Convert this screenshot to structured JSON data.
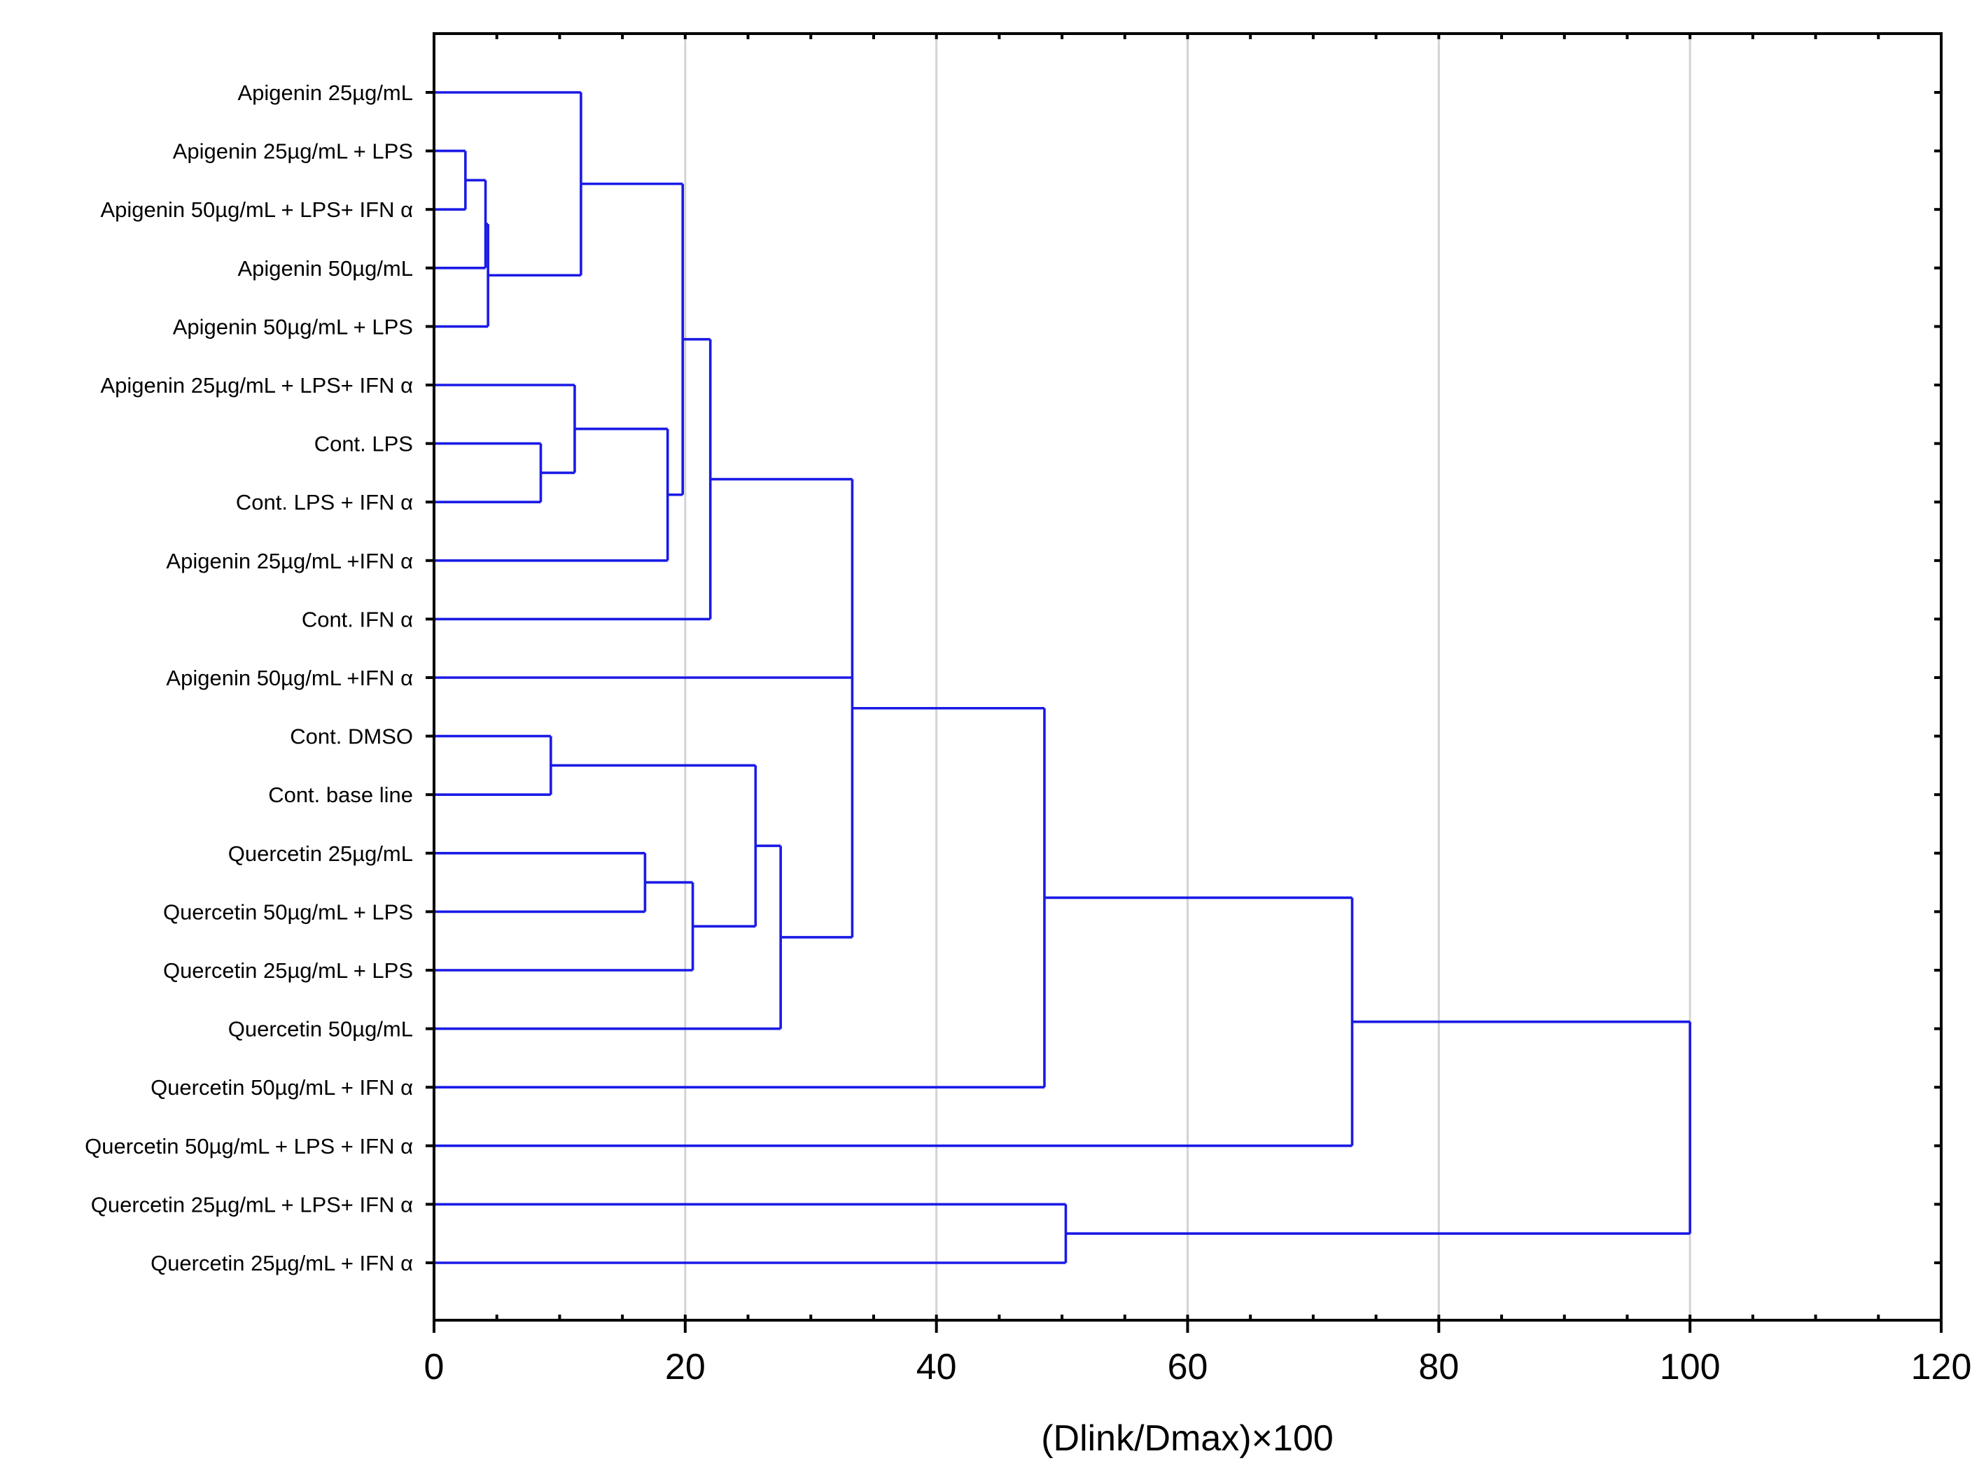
{
  "chart_data": {
    "type": "dendrogram",
    "orientation": "horizontal",
    "xlabel": "(Dlink/Dmax)×100",
    "xlim": [
      0,
      120
    ],
    "xticks": [
      0,
      20,
      40,
      60,
      80,
      100,
      120
    ],
    "grid": "vertical",
    "line_color": "#1a1ae6",
    "leaves": [
      "Apigenin 25µg/mL",
      "Apigenin 25µg/mL + LPS",
      "Apigenin 50µg/mL + LPS+ IFN α",
      "Apigenin 50µg/mL",
      "Apigenin 50µg/mL + LPS",
      "Apigenin 25µg/mL + LPS+ IFN α",
      "Cont. LPS",
      "Cont. LPS + IFN α",
      "Apigenin 25µg/mL +IFN α",
      "Cont. IFN α",
      "Apigenin 50µg/mL +IFN α",
      "Cont. DMSO",
      "Cont. base line",
      "Quercetin 25µg/mL",
      "Quercetin 50µg/mL + LPS",
      "Quercetin 25µg/mL + LPS",
      "Quercetin 50µg/mL",
      "Quercetin 50µg/mL + IFN α",
      "Quercetin 50µg/mL + LPS + IFN α",
      "Quercetin 25µg/mL + LPS+ IFN α",
      "Quercetin 25µg/mL + IFN α"
    ],
    "merges": [
      {
        "id": "m1",
        "children": [
          "L1",
          "L2"
        ],
        "height": 2.5
      },
      {
        "id": "m2",
        "children": [
          "m1",
          "L3"
        ],
        "height": 4.1
      },
      {
        "id": "m3",
        "children": [
          "m2",
          "L4"
        ],
        "height": 4.3
      },
      {
        "id": "m4",
        "children": [
          "L0",
          "m3"
        ],
        "height": 11.7
      },
      {
        "id": "m5",
        "children": [
          "L6",
          "L7"
        ],
        "height": 8.5
      },
      {
        "id": "m6",
        "children": [
          "L5",
          "m5"
        ],
        "height": 11.2
      },
      {
        "id": "m7",
        "children": [
          "m6",
          "L8"
        ],
        "height": 18.6
      },
      {
        "id": "m8",
        "children": [
          "m4",
          "m7"
        ],
        "height": 19.8
      },
      {
        "id": "m9",
        "children": [
          "m8",
          "L9"
        ],
        "height": 22.0
      },
      {
        "id": "m10",
        "children": [
          "L11",
          "L12"
        ],
        "height": 9.3
      },
      {
        "id": "m11",
        "children": [
          "L13",
          "L14"
        ],
        "height": 16.8
      },
      {
        "id": "m12",
        "children": [
          "m11",
          "L15"
        ],
        "height": 20.6
      },
      {
        "id": "m13",
        "children": [
          "m10",
          "m12"
        ],
        "height": 25.6
      },
      {
        "id": "m14",
        "children": [
          "m13",
          "L16"
        ],
        "height": 27.6
      },
      {
        "id": "m15",
        "children": [
          "m9",
          "L10",
          "m14"
        ],
        "height": 33.3
      },
      {
        "id": "m16",
        "children": [
          "m15",
          "L17"
        ],
        "height": 48.6
      },
      {
        "id": "m17",
        "children": [
          "m16",
          "L18"
        ],
        "height": 73.1
      },
      {
        "id": "m18",
        "children": [
          "L19",
          "L20"
        ],
        "height": 50.3
      },
      {
        "id": "m19",
        "children": [
          "m17",
          "m18"
        ],
        "height": 100.0
      }
    ]
  }
}
